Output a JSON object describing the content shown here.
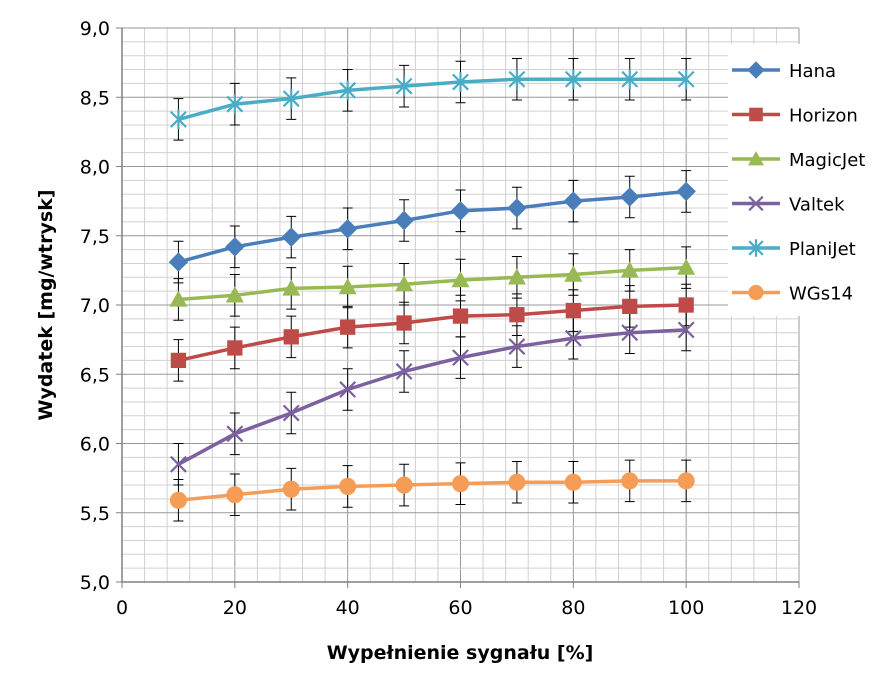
{
  "chart_data": {
    "type": "line",
    "title": "",
    "xlabel": "Wypełnienie sygnału [%]",
    "ylabel": "Wydatek [mg/wtrysk]",
    "xlim": [
      0,
      120
    ],
    "ylim": [
      5.0,
      9.0
    ],
    "x_ticks": [
      0,
      20,
      40,
      60,
      80,
      100,
      120
    ],
    "x_tick_labels": [
      "0",
      "20",
      "40",
      "60",
      "80",
      "100",
      "120"
    ],
    "y_ticks": [
      5.0,
      5.5,
      6.0,
      6.5,
      7.0,
      7.5,
      8.0,
      8.5,
      9.0
    ],
    "y_tick_labels": [
      "5,0",
      "5,5",
      "6,0",
      "6,5",
      "7,0",
      "7,5",
      "8,0",
      "8,5",
      "9,0"
    ],
    "grid": true,
    "legend_position": "right",
    "error_bars": 0.15,
    "x": [
      10,
      20,
      30,
      40,
      50,
      60,
      70,
      80,
      90,
      100
    ],
    "series": [
      {
        "name": "Hana",
        "color": "#4a7ebb",
        "marker": "diamond",
        "values": [
          7.31,
          7.42,
          7.49,
          7.55,
          7.61,
          7.68,
          7.7,
          7.75,
          7.78,
          7.82
        ]
      },
      {
        "name": "Horizon",
        "color": "#be4b48",
        "marker": "square",
        "values": [
          6.6,
          6.69,
          6.77,
          6.84,
          6.87,
          6.92,
          6.93,
          6.96,
          6.99,
          7.0
        ]
      },
      {
        "name": "MagicJet",
        "color": "#98b954",
        "marker": "triangle",
        "values": [
          7.04,
          7.07,
          7.12,
          7.13,
          7.15,
          7.18,
          7.2,
          7.22,
          7.25,
          7.27
        ]
      },
      {
        "name": "Valtek",
        "color": "#7d60a0",
        "marker": "x",
        "values": [
          5.85,
          6.07,
          6.22,
          6.39,
          6.52,
          6.62,
          6.7,
          6.76,
          6.8,
          6.82
        ]
      },
      {
        "name": "PlaniJet",
        "color": "#4bacc6",
        "marker": "star",
        "values": [
          8.34,
          8.45,
          8.49,
          8.55,
          8.58,
          8.61,
          8.63,
          8.63,
          8.63,
          8.63
        ]
      },
      {
        "name": "WGs14",
        "color": "#f59d56",
        "marker": "circle",
        "values": [
          5.59,
          5.63,
          5.67,
          5.69,
          5.7,
          5.71,
          5.72,
          5.72,
          5.73,
          5.73
        ]
      }
    ]
  }
}
